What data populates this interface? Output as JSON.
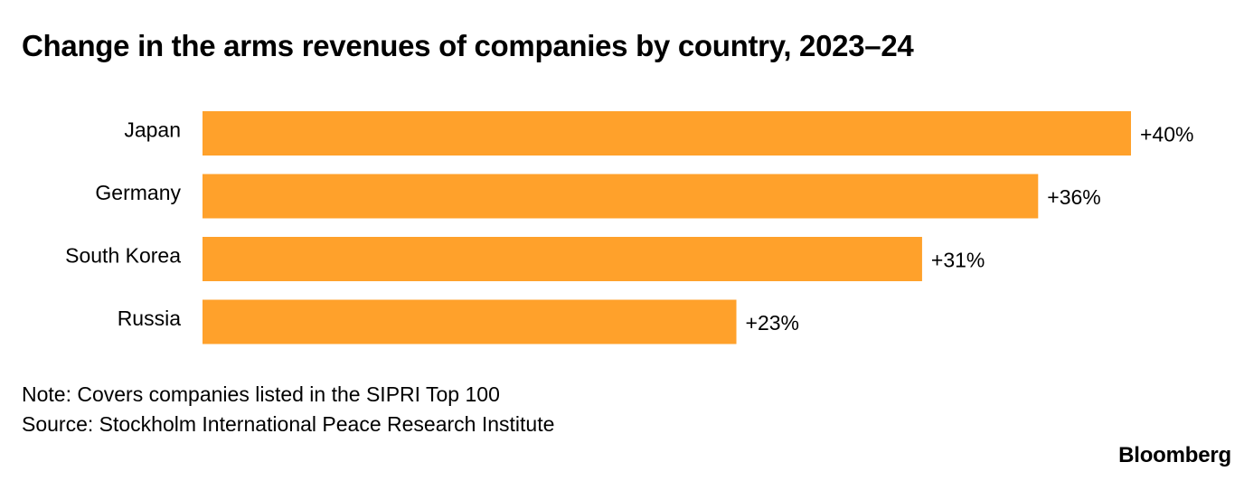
{
  "chart_data": {
    "type": "bar",
    "orientation": "horizontal",
    "title": "Change in the arms revenues of companies by country, 2023–24",
    "categories": [
      "Japan",
      "Germany",
      "South Korea",
      "Russia"
    ],
    "values": [
      40,
      36,
      31,
      23
    ],
    "value_labels": [
      "+40%",
      "+36%",
      "+31%",
      "+23%"
    ],
    "xlim": [
      0,
      40
    ],
    "xlabel": "",
    "ylabel": "",
    "grid": false,
    "bar_color": "#ffa12b"
  },
  "footer": {
    "note": "Note: Covers companies listed in the SIPRI Top 100",
    "source": "Source: Stockholm International Peace Research Institute",
    "brand": "Bloomberg"
  }
}
